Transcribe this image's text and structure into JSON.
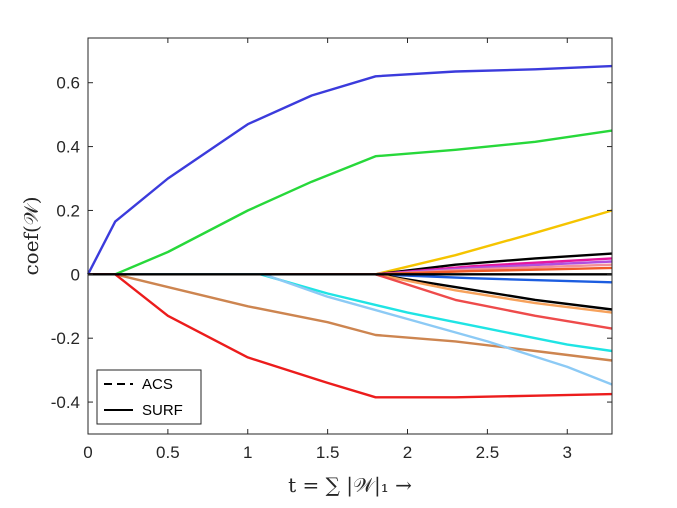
{
  "chart_data": {
    "type": "line",
    "xlabel": "t = ∑ |𝒲|₁ →",
    "ylabel": "coef(𝒲)",
    "xlim": [
      0,
      3.28
    ],
    "ylim": [
      -0.5,
      0.74
    ],
    "xticks": [
      0,
      0.5,
      1,
      1.5,
      2,
      2.5,
      3
    ],
    "xtick_labels": [
      "0",
      "0.5",
      "1",
      "1.5",
      "2",
      "2.5",
      "3"
    ],
    "yticks": [
      -0.4,
      -0.2,
      0,
      0.2,
      0.4,
      0.6
    ],
    "ytick_labels": [
      "-0.4",
      "-0.2",
      "0",
      "0.2",
      "0.4",
      "0.6"
    ],
    "grid": false,
    "legend": {
      "position": "bottom-left",
      "entries": [
        {
          "label": "ACS",
          "style": "dashed"
        },
        {
          "label": "SURF",
          "style": "solid"
        }
      ]
    },
    "series": [
      {
        "color": "#3b3bdc",
        "x": [
          0,
          0.17,
          0.5,
          1.0,
          1.4,
          1.8,
          2.3,
          2.8,
          3.28
        ],
        "values": [
          0,
          0.165,
          0.3,
          0.47,
          0.56,
          0.62,
          0.635,
          0.642,
          0.652
        ]
      },
      {
        "color": "#27d83a",
        "x": [
          0,
          0.17,
          0.5,
          1.0,
          1.4,
          1.8,
          2.3,
          2.8,
          3.28
        ],
        "values": [
          0,
          0,
          0.07,
          0.2,
          0.29,
          0.37,
          0.39,
          0.415,
          0.45
        ]
      },
      {
        "color": "#f5c400",
        "x": [
          0,
          1.8,
          2.3,
          2.8,
          3.28
        ],
        "values": [
          0,
          0,
          0.06,
          0.13,
          0.2
        ]
      },
      {
        "color": "#000000",
        "x": [
          0,
          1.8,
          2.3,
          2.8,
          3.28
        ],
        "values": [
          0,
          0,
          0.03,
          0.05,
          0.065
        ]
      },
      {
        "color": "#e5179e",
        "x": [
          0,
          1.8,
          2.4,
          3.28
        ],
        "values": [
          0,
          0,
          0.025,
          0.05
        ]
      },
      {
        "color": "#b04fe0",
        "x": [
          0,
          1.8,
          2.4,
          3.28
        ],
        "values": [
          0,
          0,
          0.02,
          0.04
        ]
      },
      {
        "color": "#f2909b",
        "x": [
          0,
          1.8,
          2.4,
          3.28
        ],
        "values": [
          0,
          0,
          0.015,
          0.03
        ]
      },
      {
        "color": "#f05a28",
        "x": [
          0,
          1.8,
          2.4,
          3.28
        ],
        "values": [
          0,
          0,
          0.01,
          0.02
        ]
      },
      {
        "color": "#1c5de0",
        "x": [
          0,
          1.8,
          2.4,
          3.28
        ],
        "values": [
          0,
          0,
          -0.012,
          -0.025
        ]
      },
      {
        "color": "#000000",
        "x": [
          0,
          1.8,
          2.3,
          2.8,
          3.28
        ],
        "values": [
          0,
          0,
          -0.04,
          -0.08,
          -0.11
        ]
      },
      {
        "color": "#f7a25c",
        "x": [
          0,
          1.8,
          2.3,
          2.8,
          3.28
        ],
        "values": [
          0,
          0,
          -0.05,
          -0.09,
          -0.12
        ]
      },
      {
        "color": "#ee4b4b",
        "x": [
          0,
          1.8,
          2.3,
          2.8,
          3.28
        ],
        "values": [
          0,
          0,
          -0.08,
          -0.13,
          -0.17
        ]
      },
      {
        "color": "#1fe4e4",
        "x": [
          0,
          1.08,
          1.5,
          2.0,
          2.5,
          3.0,
          3.28
        ],
        "values": [
          0,
          0,
          -0.06,
          -0.12,
          -0.17,
          -0.22,
          -0.24
        ]
      },
      {
        "color": "#cd8550",
        "x": [
          0,
          0.17,
          0.5,
          1.0,
          1.5,
          1.8,
          2.3,
          2.8,
          3.28
        ],
        "values": [
          0,
          0,
          -0.04,
          -0.1,
          -0.15,
          -0.19,
          -0.21,
          -0.24,
          -0.27
        ]
      },
      {
        "color": "#8ccaf5",
        "x": [
          0,
          1.1,
          1.5,
          2.0,
          2.5,
          3.0,
          3.28
        ],
        "values": [
          0,
          0,
          -0.07,
          -0.14,
          -0.21,
          -0.29,
          -0.345
        ]
      },
      {
        "color": "#ec1c1c",
        "x": [
          0,
          0.17,
          0.5,
          1.0,
          1.5,
          1.8,
          2.3,
          2.8,
          3.28
        ],
        "values": [
          0,
          0,
          -0.13,
          -0.26,
          -0.34,
          -0.385,
          -0.385,
          -0.38,
          -0.375
        ]
      },
      {
        "color": "#000000",
        "x": [
          0,
          3.28
        ],
        "values": [
          0,
          0
        ]
      }
    ]
  }
}
